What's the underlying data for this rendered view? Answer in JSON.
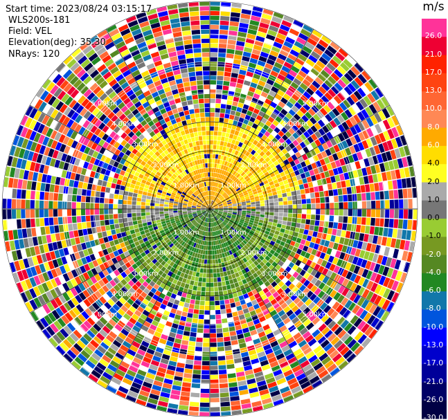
{
  "info": {
    "start_time": "Start time: 2023/08/24 03:15:17",
    "instrument": "WLS200s-181",
    "field": "Field: VEL",
    "elevation": "Elevation(deg): 35.30",
    "nrays": "NRays: 120"
  },
  "colorbar": {
    "unit": "m/s",
    "levels": [
      {
        "label": "26.0",
        "color": "#ff3399"
      },
      {
        "label": "21.0",
        "color": "#ee0033"
      },
      {
        "label": "17.0",
        "color": "#ff2200"
      },
      {
        "label": "13.0",
        "color": "#ff4411"
      },
      {
        "label": "10.0",
        "color": "#ff6633"
      },
      {
        "label": "8.0",
        "color": "#ff8855"
      },
      {
        "label": "6.0",
        "color": "#ffaa00"
      },
      {
        "label": "4.0",
        "color": "#ffdd00"
      },
      {
        "label": "2.0",
        "color": "#ffff22"
      },
      {
        "label": "1.0",
        "color": "#aaaaaa"
      },
      {
        "label": "0.0",
        "color": "#777777"
      },
      {
        "label": "-1.0",
        "color": "#99cc33"
      },
      {
        "label": "-2.0",
        "color": "#779922"
      },
      {
        "label": "-4.0",
        "color": "#558822"
      },
      {
        "label": "-6.0",
        "color": "#228822"
      },
      {
        "label": "-8.0",
        "color": "#1177aa"
      },
      {
        "label": "-10.0",
        "color": "#0055dd"
      },
      {
        "label": "-13.0",
        "color": "#0000ff"
      },
      {
        "label": "-17.0",
        "color": "#0000cc"
      },
      {
        "label": "-21.0",
        "color": "#000099"
      },
      {
        "label": "-26.0",
        "color": "#000066"
      },
      {
        "label": "-30.0",
        "color": "#000044"
      }
    ]
  },
  "chart_data": {
    "type": "heatmap",
    "subtype": "radar-ppi",
    "field": "VEL",
    "elevation_deg": 35.3,
    "nrays": 120,
    "range_ring_labels_km": [
      "1.00km",
      "2.00km",
      "3.00km",
      "4.00km",
      "5.00km"
    ],
    "azimuth_spokes_deg": [
      0,
      30,
      60,
      90,
      120,
      150,
      180,
      210,
      240,
      270,
      300,
      330
    ],
    "pattern": {
      "north_half_velocity_range_m_s": [
        1.0,
        8.0
      ],
      "south_half_velocity_range_m_s": [
        -8.0,
        0.0
      ],
      "valid_data_max_range_km": 2.2,
      "beyond_range": "noise (all colours)"
    }
  }
}
